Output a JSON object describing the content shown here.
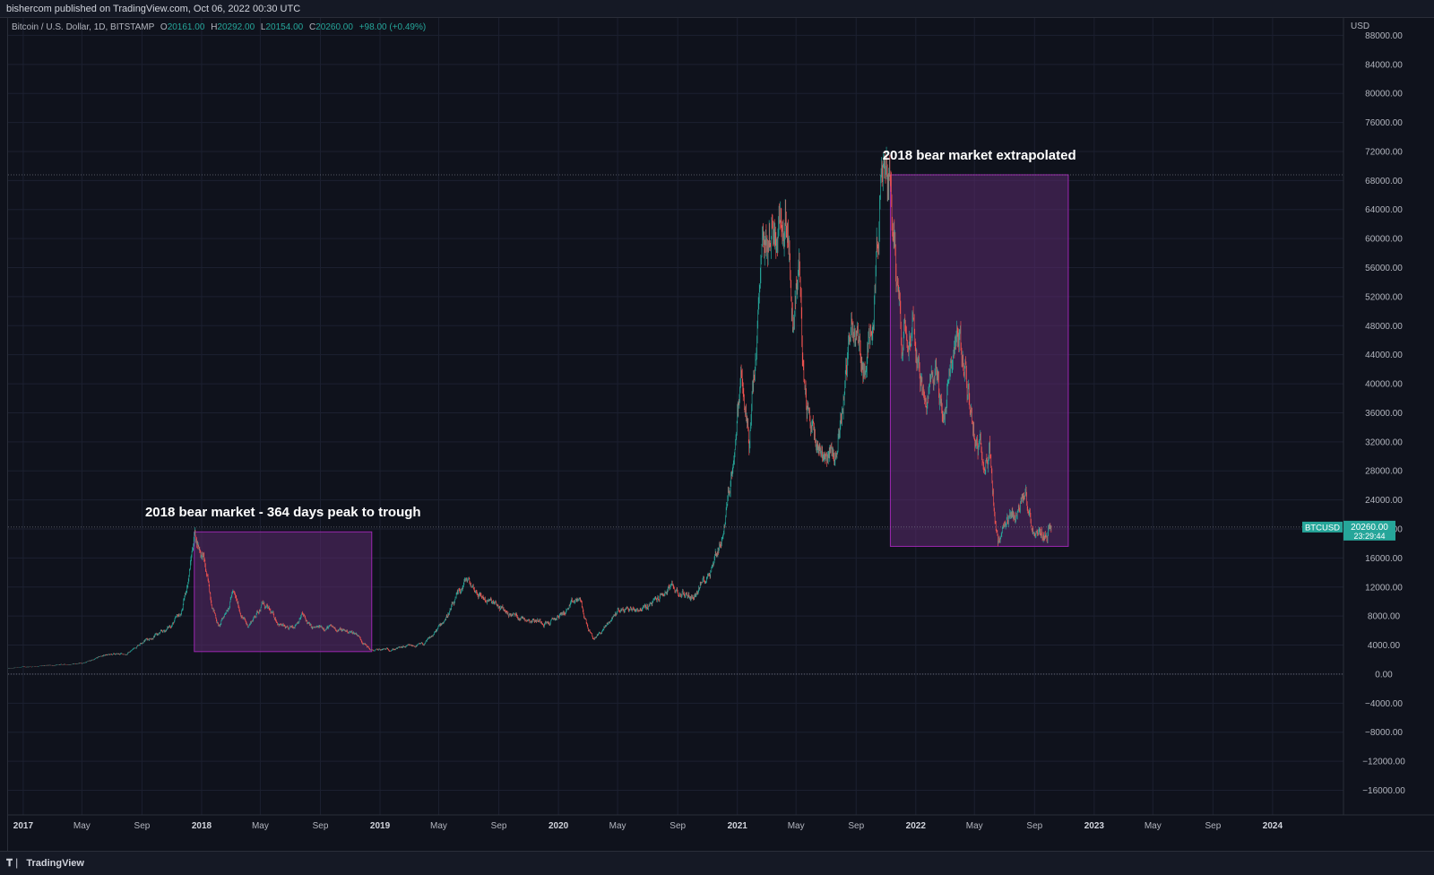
{
  "header": {
    "published_by": "bishercom published on TradingView.com, Oct 06, 2022 00:30 UTC"
  },
  "symbol": {
    "name": "Bitcoin / U.S. Dollar, 1D, BITSTAMP",
    "open_label": "O",
    "open": "20161.00",
    "high_label": "H",
    "high": "20292.00",
    "low_label": "L",
    "low": "20154.00",
    "close_label": "C",
    "close": "20260.00",
    "change": "+98.00 (+0.49%)"
  },
  "axis": {
    "currency": "USD"
  },
  "price_tag": {
    "ticker": "BTCUSD",
    "price": "20260.00",
    "countdown": "23:29:44"
  },
  "footer": {
    "brand": "TradingView",
    "logo_icon": "tradingview-logo-icon"
  },
  "colors": {
    "background": "#0f121c",
    "grid": "#1c2030",
    "up": "#26a69a",
    "down": "#ef5350",
    "box_fill": "#5b2a6e",
    "box_border": "#9c27b0",
    "price_tag": "#26a69a"
  },
  "chart_data": {
    "type": "candlestick",
    "series": [
      {
        "name": "Bitcoin / U.S. Dollar",
        "approx_close_path": [
          [
            "2016-12-01",
            750
          ],
          [
            "2017-01-01",
            960
          ],
          [
            "2017-03-01",
            1200
          ],
          [
            "2017-05-01",
            1500
          ],
          [
            "2017-06-15",
            2600
          ],
          [
            "2017-08-01",
            2800
          ],
          [
            "2017-09-01",
            4600
          ],
          [
            "2017-10-15",
            5800
          ],
          [
            "2017-11-20",
            8300
          ],
          [
            "2017-12-17",
            19600
          ],
          [
            "2018-01-05",
            16000
          ],
          [
            "2018-02-06",
            6500
          ],
          [
            "2018-03-05",
            11500
          ],
          [
            "2018-04-05",
            6600
          ],
          [
            "2018-05-05",
            9800
          ],
          [
            "2018-06-28",
            5900
          ],
          [
            "2018-07-25",
            8300
          ],
          [
            "2018-08-15",
            6200
          ],
          [
            "2018-09-15",
            6500
          ],
          [
            "2018-11-15",
            5600
          ],
          [
            "2018-12-15",
            3200
          ],
          [
            "2019-02-01",
            3500
          ],
          [
            "2019-04-01",
            4100
          ],
          [
            "2019-05-15",
            7800
          ],
          [
            "2019-06-26",
            13000
          ],
          [
            "2019-08-01",
            10500
          ],
          [
            "2019-09-25",
            8200
          ],
          [
            "2019-12-15",
            7100
          ],
          [
            "2020-02-13",
            10400
          ],
          [
            "2020-03-12",
            4800
          ],
          [
            "2020-05-01",
            8800
          ],
          [
            "2020-07-01",
            9200
          ],
          [
            "2020-08-15",
            11800
          ],
          [
            "2020-10-01",
            10600
          ],
          [
            "2020-11-01",
            13800
          ],
          [
            "2020-12-01",
            19000
          ],
          [
            "2021-01-08",
            41000
          ],
          [
            "2021-01-25",
            32000
          ],
          [
            "2021-02-21",
            57000
          ],
          [
            "2021-03-13",
            61000
          ],
          [
            "2021-04-14",
            64800
          ],
          [
            "2021-04-25",
            49000
          ],
          [
            "2021-05-07",
            58000
          ],
          [
            "2021-05-19",
            37000
          ],
          [
            "2021-06-22",
            31000
          ],
          [
            "2021-07-20",
            30000
          ],
          [
            "2021-08-23",
            49000
          ],
          [
            "2021-09-21",
            41000
          ],
          [
            "2021-10-20",
            66000
          ],
          [
            "2021-11-10",
            68789
          ],
          [
            "2021-12-04",
            47000
          ],
          [
            "2021-12-27",
            51000
          ],
          [
            "2022-01-22",
            35000
          ],
          [
            "2022-02-10",
            44000
          ],
          [
            "2022-02-24",
            35000
          ],
          [
            "2022-03-28",
            47500
          ],
          [
            "2022-04-15",
            40000
          ],
          [
            "2022-05-10",
            31000
          ],
          [
            "2022-06-01",
            31000
          ],
          [
            "2022-06-18",
            17600
          ],
          [
            "2022-07-01",
            19300
          ],
          [
            "2022-08-14",
            24400
          ],
          [
            "2022-09-06",
            18800
          ],
          [
            "2022-10-05",
            20260
          ]
        ]
      }
    ],
    "last_price": 20260.0,
    "horizontal_lines": [
      68789,
      20260,
      0
    ],
    "boxes": [
      {
        "label": "2018 bear market - 364 days peak to trough",
        "start": "2017-12-17",
        "end": "2018-12-15",
        "top": 19600,
        "bottom": 3100
      },
      {
        "label": "2018 bear market extrapolated",
        "start": "2021-11-10",
        "end": "2022-11-09",
        "top": 68789,
        "bottom": 17600
      }
    ],
    "x_ticks": [
      "2017",
      "May",
      "Sep",
      "2018",
      "May",
      "Sep",
      "2019",
      "May",
      "Sep",
      "2020",
      "May",
      "Sep",
      "2021",
      "May",
      "Sep",
      "2022",
      "May",
      "Sep",
      "2023",
      "May",
      "Sep",
      "2024"
    ],
    "x_tick_dates": [
      "2017-01-01",
      "2017-05-01",
      "2017-09-01",
      "2018-01-01",
      "2018-05-01",
      "2018-09-01",
      "2019-01-01",
      "2019-05-01",
      "2019-09-01",
      "2020-01-01",
      "2020-05-01",
      "2020-09-01",
      "2021-01-01",
      "2021-05-01",
      "2021-09-01",
      "2022-01-01",
      "2022-05-01",
      "2022-09-01",
      "2023-01-01",
      "2023-05-01",
      "2023-09-01",
      "2024-01-01"
    ],
    "y_ticks": [
      "88000.00",
      "84000.00",
      "80000.00",
      "76000.00",
      "72000.00",
      "68000.00",
      "64000.00",
      "60000.00",
      "56000.00",
      "52000.00",
      "48000.00",
      "44000.00",
      "40000.00",
      "36000.00",
      "32000.00",
      "28000.00",
      "24000.00",
      "20000.00",
      "16000.00",
      "12000.00",
      "8000.00",
      "4000.00",
      "0.00",
      "−4000.00",
      "−8000.00",
      "−12000.00",
      "−16000.00"
    ],
    "y_tick_values": [
      88000,
      84000,
      80000,
      76000,
      72000,
      68000,
      64000,
      60000,
      56000,
      52000,
      48000,
      44000,
      40000,
      36000,
      32000,
      28000,
      24000,
      20000,
      16000,
      12000,
      8000,
      4000,
      0,
      -4000,
      -8000,
      -12000,
      -16000
    ],
    "x_range": [
      "2016-12-01",
      "2024-05-25"
    ],
    "y_range": [
      -19400,
      90400
    ],
    "grid": true
  }
}
